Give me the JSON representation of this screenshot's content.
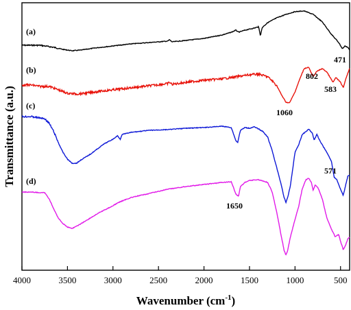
{
  "chart_data": {
    "type": "line",
    "xlabel": "Wavenumber (cm",
    "xlabel_sup": "-1",
    "xlabel_close": ")",
    "ylabel": "Transmittance (a.u.)",
    "xlim": [
      4000,
      400
    ],
    "x_reversed": true,
    "xticks": [
      4000,
      3500,
      3000,
      2500,
      2000,
      1500,
      1000,
      500
    ],
    "y_ticks_shown": false,
    "grid": false,
    "legend": "none",
    "series": [
      {
        "name": "(a)",
        "color": "#000000",
        "points": [
          [
            4000,
            66
          ],
          [
            3800,
            66
          ],
          [
            3650,
            69
          ],
          [
            3550,
            72
          ],
          [
            3450,
            74
          ],
          [
            3350,
            73
          ],
          [
            3200,
            70
          ],
          [
            3000,
            67
          ],
          [
            2800,
            64
          ],
          [
            2600,
            62
          ],
          [
            2400,
            60
          ],
          [
            2380,
            58
          ],
          [
            2350,
            61
          ],
          [
            2200,
            59
          ],
          [
            2000,
            56
          ],
          [
            1800,
            51
          ],
          [
            1700,
            47
          ],
          [
            1650,
            44
          ],
          [
            1620,
            47
          ],
          [
            1550,
            44
          ],
          [
            1450,
            41
          ],
          [
            1400,
            39
          ],
          [
            1380,
            52
          ],
          [
            1360,
            40
          ],
          [
            1300,
            33
          ],
          [
            1200,
            26
          ],
          [
            1100,
            21
          ],
          [
            1000,
            17
          ],
          [
            900,
            16
          ],
          [
            800,
            21
          ],
          [
            700,
            32
          ],
          [
            600,
            50
          ],
          [
            520,
            62
          ],
          [
            480,
            71
          ],
          [
            450,
            67
          ],
          [
            420,
            69
          ],
          [
            400,
            73
          ]
        ]
      },
      {
        "name": "(b)",
        "color": "#e8130b",
        "points": [
          [
            4000,
            124
          ],
          [
            3900,
            124
          ],
          [
            3800,
            126
          ],
          [
            3700,
            126
          ],
          [
            3600,
            131
          ],
          [
            3500,
            136
          ],
          [
            3400,
            137
          ],
          [
            3300,
            136
          ],
          [
            3200,
            134
          ],
          [
            3000,
            131
          ],
          [
            2800,
            128
          ],
          [
            2600,
            125
          ],
          [
            2400,
            122
          ],
          [
            2380,
            120
          ],
          [
            2350,
            123
          ],
          [
            2200,
            120
          ],
          [
            2000,
            117
          ],
          [
            1800,
            115
          ],
          [
            1700,
            113
          ],
          [
            1600,
            111
          ],
          [
            1500,
            109
          ],
          [
            1400,
            108
          ],
          [
            1300,
            112
          ],
          [
            1250,
            118
          ],
          [
            1200,
            125
          ],
          [
            1150,
            138
          ],
          [
            1100,
            149
          ],
          [
            1060,
            150
          ],
          [
            1000,
            134
          ],
          [
            950,
            116
          ],
          [
            900,
            100
          ],
          [
            850,
            98
          ],
          [
            802,
            112
          ],
          [
            760,
            104
          ],
          [
            700,
            100
          ],
          [
            650,
            105
          ],
          [
            583,
            120
          ],
          [
            550,
            113
          ],
          [
            500,
            120
          ],
          [
            470,
            128
          ],
          [
            440,
            114
          ],
          [
            410,
            103
          ],
          [
            400,
            100
          ]
        ]
      },
      {
        "name": "(c)",
        "color": "#0d18d6",
        "points": [
          [
            4000,
            170
          ],
          [
            3900,
            170
          ],
          [
            3800,
            172
          ],
          [
            3750,
            173
          ],
          [
            3700,
            180
          ],
          [
            3650,
            192
          ],
          [
            3600,
            208
          ],
          [
            3550,
            222
          ],
          [
            3500,
            232
          ],
          [
            3450,
            238
          ],
          [
            3400,
            238
          ],
          [
            3350,
            233
          ],
          [
            3250,
            225
          ],
          [
            3100,
            210
          ],
          [
            3000,
            203
          ],
          [
            2950,
            198
          ],
          [
            2920,
            203
          ],
          [
            2900,
            196
          ],
          [
            2800,
            193
          ],
          [
            2600,
            190
          ],
          [
            2400,
            189
          ],
          [
            2200,
            187
          ],
          [
            2000,
            186
          ],
          [
            1800,
            184
          ],
          [
            1700,
            186
          ],
          [
            1650,
            205
          ],
          [
            1630,
            208
          ],
          [
            1600,
            190
          ],
          [
            1550,
            186
          ],
          [
            1500,
            187
          ],
          [
            1450,
            185
          ],
          [
            1400,
            188
          ],
          [
            1350,
            192
          ],
          [
            1300,
            200
          ],
          [
            1250,
            220
          ],
          [
            1200,
            245
          ],
          [
            1150,
            270
          ],
          [
            1120,
            288
          ],
          [
            1100,
            295
          ],
          [
            1080,
            288
          ],
          [
            1050,
            270
          ],
          [
            1000,
            222
          ],
          [
            960,
            211
          ],
          [
            920,
            196
          ],
          [
            880,
            192
          ],
          [
            850,
            188
          ],
          [
            810,
            194
          ],
          [
            790,
            204
          ],
          [
            760,
            196
          ],
          [
            720,
            207
          ],
          [
            660,
            220
          ],
          [
            600,
            235
          ],
          [
            571,
            258
          ],
          [
            540,
            262
          ],
          [
            500,
            276
          ],
          [
            470,
            285
          ],
          [
            440,
            268
          ],
          [
            420,
            257
          ],
          [
            400,
            255
          ]
        ]
      },
      {
        "name": "(d)",
        "color": "#e11ae8",
        "points": [
          [
            4000,
            280
          ],
          [
            3900,
            280
          ],
          [
            3800,
            281
          ],
          [
            3750,
            281
          ],
          [
            3700,
            290
          ],
          [
            3650,
            305
          ],
          [
            3600,
            318
          ],
          [
            3550,
            326
          ],
          [
            3500,
            331
          ],
          [
            3450,
            333
          ],
          [
            3400,
            330
          ],
          [
            3300,
            322
          ],
          [
            3150,
            310
          ],
          [
            3000,
            300
          ],
          [
            2950,
            296
          ],
          [
            2900,
            293
          ],
          [
            2800,
            288
          ],
          [
            2600,
            282
          ],
          [
            2400,
            276
          ],
          [
            2200,
            272
          ],
          [
            2000,
            269
          ],
          [
            1800,
            266
          ],
          [
            1700,
            265
          ],
          [
            1650,
            283
          ],
          [
            1620,
            286
          ],
          [
            1600,
            272
          ],
          [
            1550,
            266
          ],
          [
            1500,
            263
          ],
          [
            1400,
            262
          ],
          [
            1300,
            266
          ],
          [
            1250,
            280
          ],
          [
            1200,
            310
          ],
          [
            1150,
            345
          ],
          [
            1120,
            365
          ],
          [
            1100,
            372
          ],
          [
            1080,
            365
          ],
          [
            1050,
            345
          ],
          [
            1000,
            320
          ],
          [
            960,
            301
          ],
          [
            920,
            275
          ],
          [
            880,
            262
          ],
          [
            850,
            260
          ],
          [
            820,
            266
          ],
          [
            800,
            278
          ],
          [
            780,
            270
          ],
          [
            750,
            273
          ],
          [
            700,
            290
          ],
          [
            650,
            318
          ],
          [
            600,
            334
          ],
          [
            560,
            345
          ],
          [
            520,
            342
          ],
          [
            500,
            352
          ],
          [
            470,
            364
          ],
          [
            440,
            356
          ],
          [
            420,
            348
          ],
          [
            400,
            346
          ]
        ]
      }
    ],
    "series_tags": [
      "(a)",
      "(b)",
      "(c)",
      "(d)"
    ],
    "annotations": [
      "471",
      "802",
      "583",
      "1060",
      "571",
      "1650"
    ]
  }
}
